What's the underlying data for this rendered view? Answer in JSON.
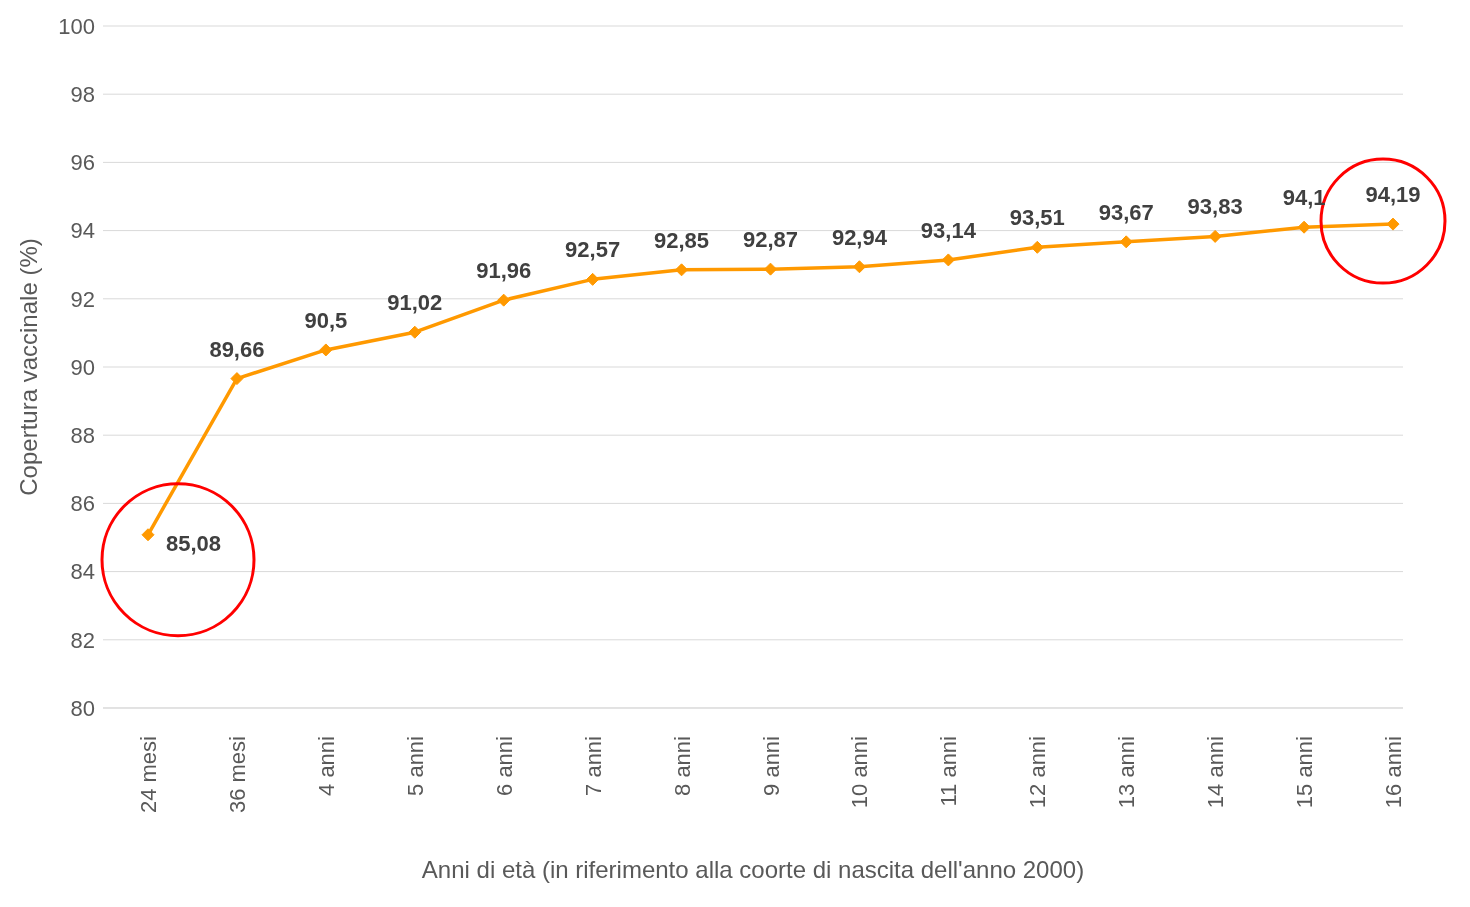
{
  "chart_data": {
    "type": "line",
    "xlabel": "Anni di età (in riferimento alla coorte di nascita dell'anno 2000)",
    "ylabel": "Copertura vaccinale (%)",
    "categories": [
      "24 mesi",
      "36 mesi",
      "4 anni",
      "5 anni",
      "6 anni",
      "7 anni",
      "8 anni",
      "9 anni",
      "10 anni",
      "11 anni",
      "12 anni",
      "13 anni",
      "14 anni",
      "15 anni",
      "16 anni"
    ],
    "series": [
      {
        "color": "#ff9900",
        "values": [
          85.08,
          89.66,
          90.5,
          91.02,
          91.96,
          92.57,
          92.85,
          92.87,
          92.94,
          93.14,
          93.51,
          93.67,
          93.83,
          94.1,
          94.19
        ],
        "value_labels": [
          "85,08",
          "89,66",
          "90,5",
          "91,02",
          "91,96",
          "92,57",
          "92,85",
          "92,87",
          "92,94",
          "93,14",
          "93,51",
          "93,67",
          "93,83",
          "94,1",
          "94,19"
        ]
      }
    ],
    "ylim": [
      80,
      100
    ],
    "yticks": [
      80,
      82,
      84,
      86,
      88,
      90,
      92,
      94,
      96,
      98,
      100
    ],
    "grid": "y",
    "marker": "diamond"
  }
}
